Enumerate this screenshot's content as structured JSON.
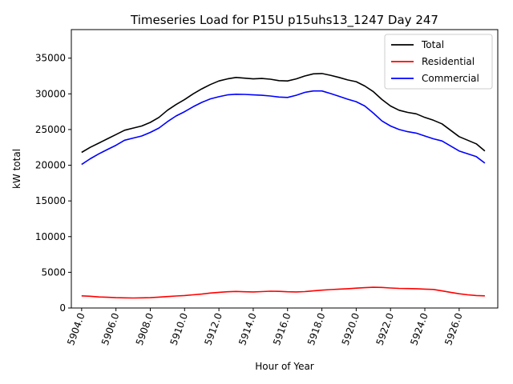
{
  "chart_data": {
    "type": "line",
    "title": "Timeseries Load for P15U p15uhs13_1247  Day 247",
    "xlabel": "Hour of Year",
    "ylabel": "kW total",
    "xlim": [
      5903.4,
      5928.25
    ],
    "ylim": [
      0,
      39000
    ],
    "xticks": [
      5904,
      5906,
      5908,
      5910,
      5912,
      5914,
      5916,
      5918,
      5920,
      5922,
      5924,
      5926
    ],
    "xtick_labels": [
      "5904.0",
      "5906.0",
      "5908.0",
      "5910.0",
      "5912.0",
      "5914.0",
      "5916.0",
      "5918.0",
      "5920.0",
      "5922.0",
      "5924.0",
      "5926.0"
    ],
    "yticks": [
      0,
      5000,
      10000,
      15000,
      20000,
      25000,
      30000,
      35000
    ],
    "ytick_labels": [
      "0",
      "5000",
      "10000",
      "15000",
      "20000",
      "25000",
      "30000",
      "35000"
    ],
    "legend_position": "top-right",
    "x": [
      5904,
      5904.5,
      5905,
      5905.5,
      5906,
      5906.5,
      5907,
      5907.5,
      5908,
      5908.5,
      5909,
      5909.5,
      5910,
      5910.5,
      5911,
      5911.5,
      5912,
      5912.5,
      5913,
      5913.5,
      5914,
      5914.5,
      5915,
      5915.5,
      5916,
      5916.5,
      5917,
      5917.5,
      5918,
      5918.5,
      5919,
      5919.5,
      5920,
      5920.5,
      5921,
      5921.5,
      5922,
      5922.5,
      5923,
      5923.5,
      5924,
      5924.5,
      5925,
      5925.5,
      5926,
      5926.5,
      5927,
      5927.5
    ],
    "series": [
      {
        "name": "Total",
        "color": "#000000",
        "values": [
          21800,
          22500,
          23100,
          23700,
          24300,
          24900,
          25200,
          25500,
          26000,
          26700,
          27700,
          28500,
          29200,
          30000,
          30700,
          31300,
          31800,
          32100,
          32300,
          32200,
          32100,
          32150,
          32050,
          31850,
          31800,
          32100,
          32500,
          32800,
          32850,
          32600,
          32300,
          31950,
          31700,
          31100,
          30300,
          29200,
          28300,
          27700,
          27400,
          27200,
          26700,
          26300,
          25800,
          24900,
          24000,
          23500,
          23000,
          22000
        ]
      },
      {
        "name": "Residential",
        "color": "#ff0000",
        "values": [
          1700,
          1650,
          1550,
          1500,
          1450,
          1420,
          1400,
          1420,
          1450,
          1520,
          1600,
          1680,
          1750,
          1850,
          1950,
          2100,
          2200,
          2280,
          2320,
          2280,
          2250,
          2300,
          2350,
          2330,
          2280,
          2250,
          2300,
          2400,
          2500,
          2580,
          2650,
          2700,
          2780,
          2850,
          2900,
          2880,
          2800,
          2750,
          2720,
          2700,
          2650,
          2600,
          2400,
          2200,
          2000,
          1850,
          1750,
          1700
        ]
      },
      {
        "name": "Commercial",
        "color": "#0000ff",
        "values": [
          20100,
          20900,
          21600,
          22200,
          22800,
          23500,
          23800,
          24100,
          24600,
          25200,
          26100,
          26900,
          27500,
          28200,
          28800,
          29300,
          29600,
          29850,
          29950,
          29920,
          29850,
          29800,
          29700,
          29550,
          29500,
          29800,
          30200,
          30400,
          30400,
          30050,
          29650,
          29250,
          28900,
          28300,
          27300,
          26200,
          25500,
          25000,
          24700,
          24500,
          24100,
          23700,
          23400,
          22700,
          22000,
          21600,
          21200,
          20300
        ]
      }
    ]
  }
}
